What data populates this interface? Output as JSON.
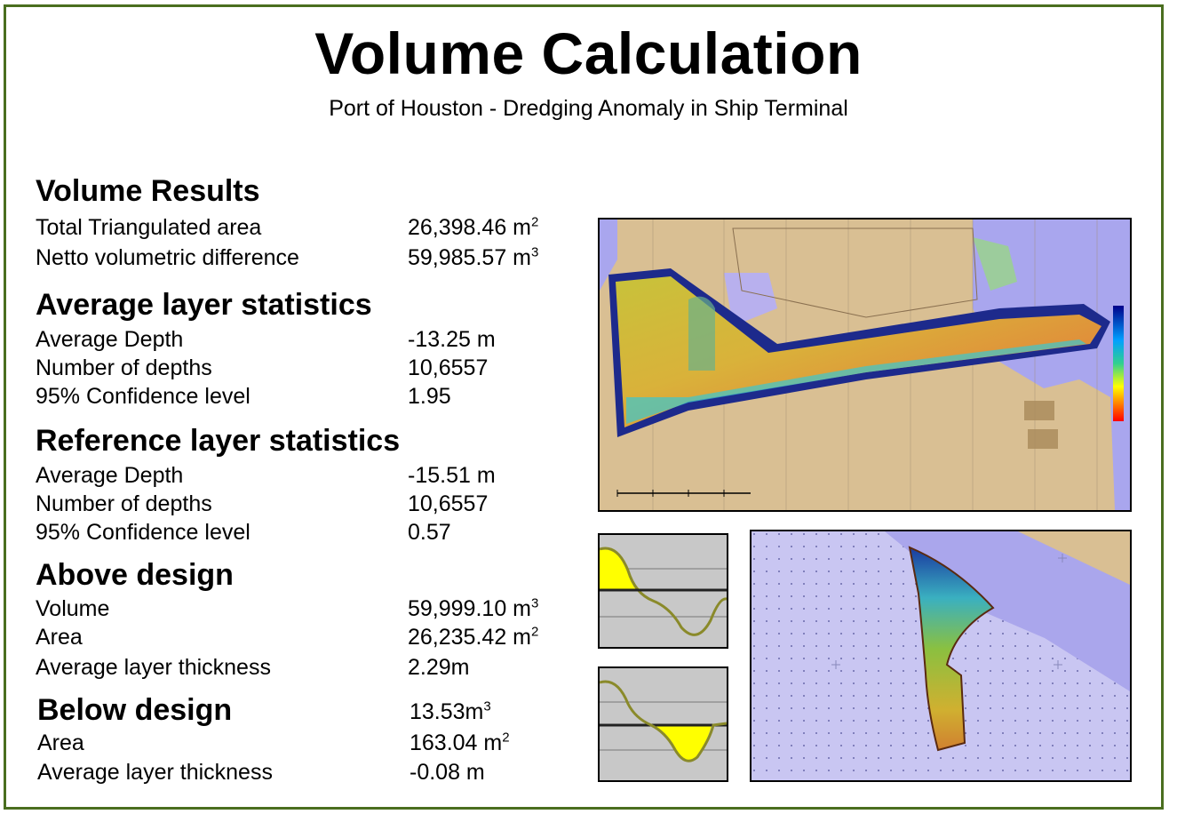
{
  "header": {
    "title": "Volume Calculation",
    "subtitle": "Port of Houston - Dredging Anomaly in Ship Terminal"
  },
  "volume_results": {
    "heading": "Volume Results",
    "rows": [
      {
        "label": "Total Triangulated area",
        "value": "26,398.46 m",
        "unit_sup": "2"
      },
      {
        "label": "Netto volumetric difference",
        "value": "59,985.57 m",
        "unit_sup": "3"
      }
    ]
  },
  "average_layer": {
    "heading": "Average layer statistics",
    "rows": [
      {
        "label": "Average Depth",
        "value": "-13.25 m"
      },
      {
        "label": "Number of depths",
        "value": "10,6557"
      },
      {
        "label": "95% Confidence level",
        "value": "1.95"
      }
    ]
  },
  "reference_layer": {
    "heading": "Reference layer statistics",
    "rows": [
      {
        "label": "Average Depth",
        "value": "-15.51 m"
      },
      {
        "label": "Number of depths",
        "value": "10,6557"
      },
      {
        "label": "95% Confidence level",
        "value": "0.57"
      }
    ]
  },
  "above_design": {
    "heading": "Above design",
    "rows": [
      {
        "label": "Volume",
        "value": "59,999.10 m",
        "unit_sup": "3"
      },
      {
        "label": "Area",
        "value": "26,235.42 m",
        "unit_sup": "2"
      },
      {
        "label": "Average layer thickness",
        "value": "2.29m"
      }
    ]
  },
  "below_design": {
    "heading": "Below design",
    "heading_value": "13.53m",
    "heading_value_sup": "3",
    "rows": [
      {
        "label": "Area",
        "value": "163.04 m",
        "unit_sup": "2"
      },
      {
        "label": "Average layer thickness",
        "value": "-0.08 m"
      }
    ]
  },
  "colors": {
    "border": "#4a6e1f",
    "land": "#d9bf93",
    "water": "#a9a6ee",
    "profile_fill": "#ffff00",
    "profile_line": "#8a8a2a",
    "profile_bg": "#c8c8c8"
  }
}
